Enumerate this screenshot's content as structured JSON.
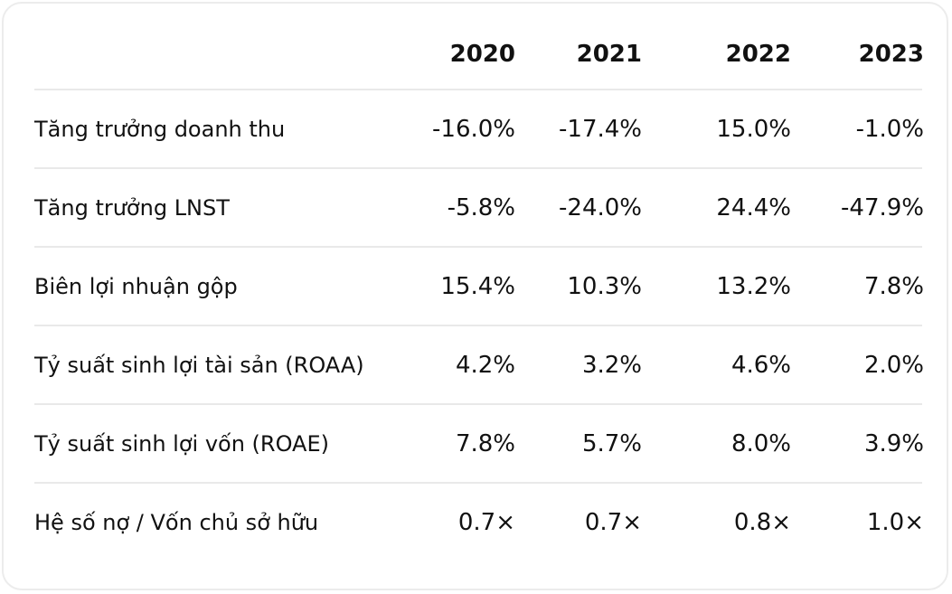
{
  "table": {
    "columns": [
      "2020",
      "2021",
      "2022",
      "2023"
    ],
    "rows": [
      {
        "label": "Tăng trưởng doanh thu",
        "values": [
          "-16.0%",
          "-17.4%",
          "15.0%",
          "-1.0%"
        ]
      },
      {
        "label": "Tăng trưởng LNST",
        "values": [
          "-5.8%",
          "-24.0%",
          "24.4%",
          "-47.9%"
        ]
      },
      {
        "label": "Biên lợi nhuận gộp",
        "values": [
          "15.4%",
          "10.3%",
          "13.2%",
          "7.8%"
        ]
      },
      {
        "label": "Tỷ suất sinh lợi tài sản (ROAA)",
        "values": [
          "4.2%",
          "3.2%",
          "4.6%",
          "2.0%"
        ]
      },
      {
        "label": "Tỷ suất sinh lợi vốn (ROAE)",
        "values": [
          "7.8%",
          "5.7%",
          "8.0%",
          "3.9%"
        ]
      },
      {
        "label": "Hệ số nợ / Vốn chủ sở hữu",
        "values": [
          "0.7×",
          "0.7×",
          "0.8×",
          "1.0×"
        ]
      }
    ]
  }
}
